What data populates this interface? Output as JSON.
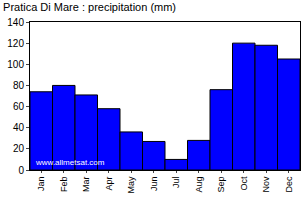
{
  "chart_data": {
    "type": "bar",
    "title": "Pratica Di Mare : precipitation (mm)",
    "categories": [
      "Jan",
      "Feb",
      "Mar",
      "Apr",
      "May",
      "Jun",
      "Jul",
      "Aug",
      "Sep",
      "Oct",
      "Nov",
      "Dec"
    ],
    "values": [
      74,
      80,
      71,
      58,
      36,
      27,
      10,
      28,
      76,
      120,
      118,
      105
    ],
    "color": "#0000ff",
    "ylim": [
      0,
      140
    ],
    "yticks": [
      0,
      20,
      40,
      60,
      80,
      100,
      120,
      140
    ],
    "grid": false,
    "annotations": [
      "www.allmetsat.com"
    ]
  }
}
